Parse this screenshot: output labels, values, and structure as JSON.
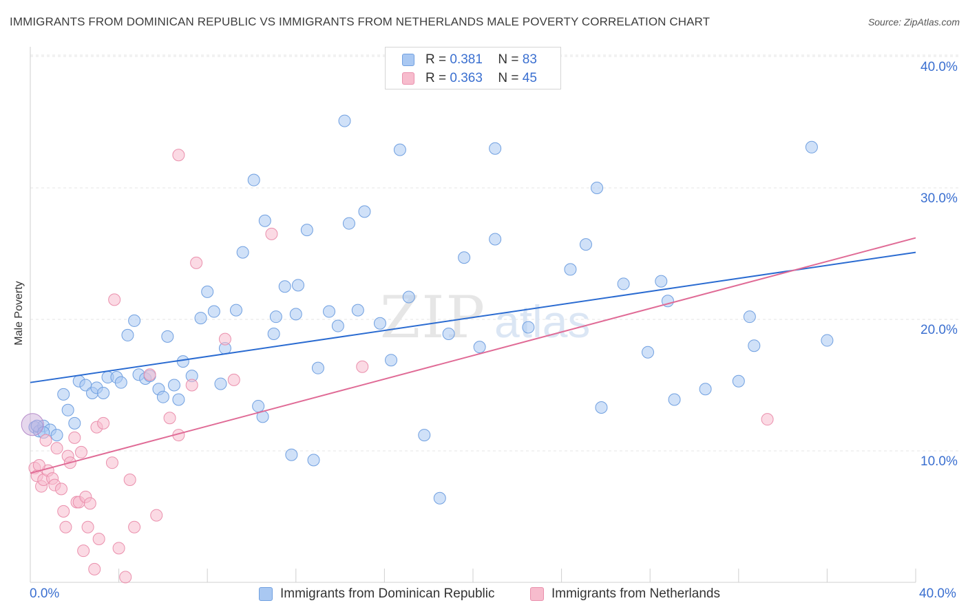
{
  "title": "IMMIGRANTS FROM DOMINICAN REPUBLIC VS IMMIGRANTS FROM NETHERLANDS MALE POVERTY CORRELATION CHART",
  "source": "Source: ZipAtlas.com",
  "watermark": "ZIPatlas",
  "legend": {
    "rows": [
      {
        "r_label": "R =",
        "r_value": "0.381",
        "n_label": "N =",
        "n_value": "83"
      },
      {
        "r_label": "R =",
        "r_value": "0.363",
        "n_label": "N =",
        "n_value": "45"
      }
    ]
  },
  "bottom_legend": [
    "Immigrants from Dominican Republic",
    "Immigrants from Netherlands"
  ],
  "colors": {
    "blue_fill": "#a9c8f2",
    "blue_stroke": "#6f9fe0",
    "blue_line": "#2a6bd1",
    "pink_fill": "#f7bccd",
    "pink_stroke": "#ea8fac",
    "pink_line": "#e06b96",
    "tick_text": "#3a6fd0",
    "grid": "#e4e4e4"
  },
  "chart_data": {
    "type": "scatter",
    "title": "IMMIGRANTS FROM DOMINICAN REPUBLIC VS IMMIGRANTS FROM NETHERLANDS MALE POVERTY CORRELATION CHART",
    "xlabel": "",
    "ylabel": "Male Poverty",
    "xlim": [
      0,
      40
    ],
    "ylim": [
      0,
      40
    ],
    "x_tick_labels": [
      "0.0%",
      "40.0%"
    ],
    "y_tick_labels": [
      "10.0%",
      "20.0%",
      "30.0%",
      "40.0%"
    ],
    "y_ticks": [
      10,
      20,
      30,
      40
    ],
    "grid": true,
    "legend_position": "top-center",
    "series": [
      {
        "name": "Immigrants from Dominican Republic",
        "r": 0.381,
        "n": 83,
        "trend": {
          "x": [
            0,
            40
          ],
          "y": [
            15.2,
            25.1
          ]
        },
        "points": [
          [
            0.2,
            11.8
          ],
          [
            0.4,
            11.5
          ],
          [
            0.6,
            11.9
          ],
          [
            0.9,
            11.6
          ],
          [
            1.2,
            11.2
          ],
          [
            1.5,
            14.3
          ],
          [
            1.7,
            13.1
          ],
          [
            2.0,
            12.1
          ],
          [
            2.2,
            15.3
          ],
          [
            2.5,
            15.0
          ],
          [
            2.8,
            14.4
          ],
          [
            3.0,
            14.8
          ],
          [
            3.3,
            14.4
          ],
          [
            3.5,
            15.6
          ],
          [
            3.9,
            15.6
          ],
          [
            4.1,
            15.2
          ],
          [
            4.4,
            18.8
          ],
          [
            4.7,
            19.9
          ],
          [
            4.9,
            15.8
          ],
          [
            5.2,
            15.5
          ],
          [
            5.4,
            15.7
          ],
          [
            5.8,
            14.7
          ],
          [
            6.0,
            14.1
          ],
          [
            6.2,
            18.7
          ],
          [
            6.5,
            15.0
          ],
          [
            6.7,
            13.9
          ],
          [
            6.9,
            16.8
          ],
          [
            7.3,
            15.7
          ],
          [
            7.7,
            20.1
          ],
          [
            8.0,
            22.1
          ],
          [
            8.3,
            20.6
          ],
          [
            8.6,
            15.1
          ],
          [
            8.8,
            17.8
          ],
          [
            9.3,
            20.7
          ],
          [
            9.6,
            25.1
          ],
          [
            10.1,
            30.6
          ],
          [
            10.3,
            13.4
          ],
          [
            10.5,
            12.6
          ],
          [
            10.6,
            27.5
          ],
          [
            11.0,
            18.9
          ],
          [
            11.1,
            20.2
          ],
          [
            11.5,
            22.5
          ],
          [
            11.8,
            9.7
          ],
          [
            12.0,
            20.4
          ],
          [
            12.1,
            22.6
          ],
          [
            12.5,
            26.8
          ],
          [
            12.8,
            9.3
          ],
          [
            13.0,
            16.3
          ],
          [
            13.5,
            20.6
          ],
          [
            13.9,
            19.5
          ],
          [
            14.2,
            35.1
          ],
          [
            14.4,
            27.3
          ],
          [
            14.8,
            20.7
          ],
          [
            15.1,
            28.2
          ],
          [
            15.8,
            19.7
          ],
          [
            16.3,
            16.9
          ],
          [
            16.7,
            32.9
          ],
          [
            17.1,
            21.7
          ],
          [
            17.8,
            11.2
          ],
          [
            18.5,
            6.4
          ],
          [
            18.9,
            18.9
          ],
          [
            19.6,
            24.7
          ],
          [
            20.3,
            17.9
          ],
          [
            21.0,
            26.1
          ],
          [
            21.0,
            33.0
          ],
          [
            22.5,
            19.4
          ],
          [
            24.4,
            23.8
          ],
          [
            25.1,
            25.7
          ],
          [
            25.6,
            30.0
          ],
          [
            25.8,
            13.3
          ],
          [
            26.8,
            22.7
          ],
          [
            27.9,
            17.5
          ],
          [
            28.5,
            22.9
          ],
          [
            28.8,
            21.4
          ],
          [
            29.1,
            13.9
          ],
          [
            30.5,
            14.7
          ],
          [
            32.0,
            15.3
          ],
          [
            32.5,
            20.2
          ],
          [
            32.7,
            18.0
          ],
          [
            35.3,
            33.1
          ],
          [
            36.0,
            18.4
          ],
          [
            0.3,
            11.9
          ],
          [
            0.6,
            11.4
          ]
        ]
      },
      {
        "name": "Immigrants from Netherlands",
        "r": 0.363,
        "n": 45,
        "trend": {
          "x": [
            0,
            40
          ],
          "y": [
            8.3,
            26.2
          ]
        },
        "points": [
          [
            0.2,
            8.7
          ],
          [
            0.3,
            8.1
          ],
          [
            0.5,
            7.3
          ],
          [
            0.6,
            7.8
          ],
          [
            0.7,
            10.8
          ],
          [
            0.8,
            8.5
          ],
          [
            1.0,
            7.9
          ],
          [
            1.1,
            7.4
          ],
          [
            1.2,
            10.2
          ],
          [
            1.4,
            7.1
          ],
          [
            1.5,
            5.4
          ],
          [
            1.6,
            4.2
          ],
          [
            1.7,
            9.6
          ],
          [
            1.8,
            9.1
          ],
          [
            2.0,
            11.0
          ],
          [
            2.1,
            6.1
          ],
          [
            2.2,
            6.1
          ],
          [
            2.3,
            9.9
          ],
          [
            2.4,
            2.4
          ],
          [
            2.5,
            6.5
          ],
          [
            2.6,
            4.2
          ],
          [
            2.7,
            6.0
          ],
          [
            2.9,
            1.0
          ],
          [
            3.0,
            11.8
          ],
          [
            3.1,
            3.3
          ],
          [
            3.3,
            12.1
          ],
          [
            3.7,
            9.1
          ],
          [
            3.8,
            21.5
          ],
          [
            4.0,
            2.6
          ],
          [
            4.3,
            0.4
          ],
          [
            4.5,
            7.8
          ],
          [
            4.7,
            4.2
          ],
          [
            5.4,
            15.8
          ],
          [
            5.7,
            5.1
          ],
          [
            6.3,
            12.5
          ],
          [
            6.7,
            11.2
          ],
          [
            6.7,
            32.5
          ],
          [
            7.3,
            15.0
          ],
          [
            7.5,
            24.3
          ],
          [
            8.8,
            18.5
          ],
          [
            9.2,
            15.4
          ],
          [
            10.9,
            26.5
          ],
          [
            15.0,
            16.4
          ],
          [
            33.3,
            12.4
          ],
          [
            0.4,
            8.9
          ]
        ]
      }
    ]
  },
  "axes": {
    "x_min_label": "0.0%",
    "x_max_label": "40.0%",
    "y_label": "Male Poverty"
  }
}
